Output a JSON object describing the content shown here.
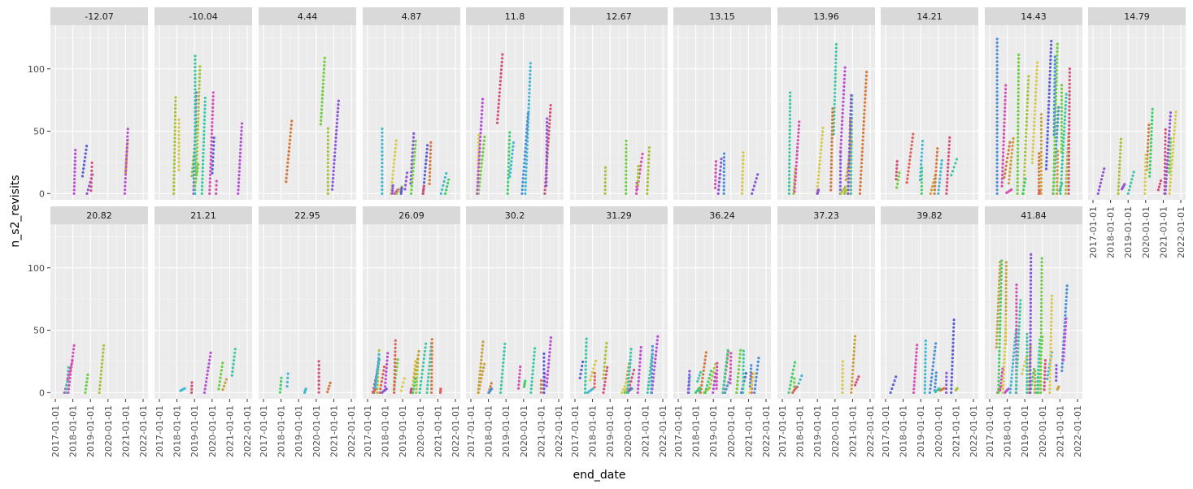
{
  "chart_data": {
    "type": "scatter",
    "xlabel": "end_date",
    "ylabel": "n_s2_revisits",
    "x_ticks": [
      "2017-01-01",
      "2018-01-01",
      "2019-01-01",
      "2020-01-01",
      "2021-01-01",
      "2022-01-01"
    ],
    "y_ticks": [
      0,
      50,
      100
    ],
    "ylim": [
      -5,
      135
    ],
    "facet_labels": [
      "-12.07",
      "-10.04",
      "4.44",
      "4.87",
      "11.8",
      "12.67",
      "13.15",
      "13.96",
      "14.21",
      "14.43",
      "14.79",
      "20.82",
      "21.21",
      "22.95",
      "26.09",
      "30.2",
      "31.29",
      "36.24",
      "37.23",
      "39.82",
      "41.84"
    ],
    "palette": [
      "#e0605a",
      "#d4783c",
      "#c9a13a",
      "#a8c238",
      "#6ccf3f",
      "#3fcf6a",
      "#38c9a4",
      "#3fb8d4",
      "#4a90d9",
      "#5a5fd6",
      "#8a55d8",
      "#b94fd6",
      "#d64fb5",
      "#d64f7c",
      "#d8c94a"
    ]
  }
}
